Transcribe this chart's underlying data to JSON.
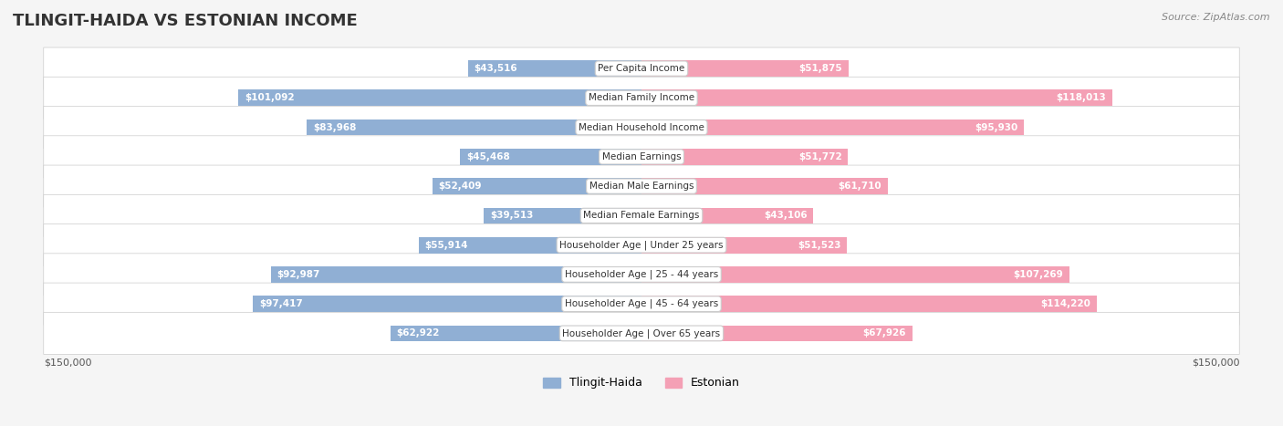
{
  "title": "TLINGIT-HAIDA VS ESTONIAN INCOME",
  "source": "Source: ZipAtlas.com",
  "categories": [
    "Per Capita Income",
    "Median Family Income",
    "Median Household Income",
    "Median Earnings",
    "Median Male Earnings",
    "Median Female Earnings",
    "Householder Age | Under 25 years",
    "Householder Age | 25 - 44 years",
    "Householder Age | 45 - 64 years",
    "Householder Age | Over 65 years"
  ],
  "tlingit_values": [
    43516,
    101092,
    83968,
    45468,
    52409,
    39513,
    55914,
    92987,
    97417,
    62922
  ],
  "estonian_values": [
    51875,
    118013,
    95930,
    51772,
    61710,
    43106,
    51523,
    107269,
    114220,
    67926
  ],
  "tlingit_labels": [
    "$43,516",
    "$101,092",
    "$83,968",
    "$45,468",
    "$52,409",
    "$39,513",
    "$55,914",
    "$92,987",
    "$97,417",
    "$62,922"
  ],
  "estonian_labels": [
    "$51,875",
    "$118,013",
    "$95,930",
    "$51,772",
    "$61,710",
    "$43,106",
    "$51,523",
    "$107,269",
    "$114,220",
    "$67,926"
  ],
  "max_value": 150000,
  "tlingit_color": "#90afd4",
  "estonian_color": "#f4a0b5",
  "tlingit_label_color_inside": "#ffffff",
  "estonian_label_color_inside": "#ffffff",
  "tlingit_label_color_outside": "#555555",
  "estonian_label_color_outside": "#555555",
  "bar_height": 0.55,
  "background_color": "#f5f5f5",
  "row_bg_color": "#ffffff",
  "row_alt_bg": "#f0f0f0",
  "legend_tlingit": "Tlingit-Haida",
  "legend_estonian": "Estonian",
  "xlabel_left": "$150,000",
  "xlabel_right": "$150,000"
}
